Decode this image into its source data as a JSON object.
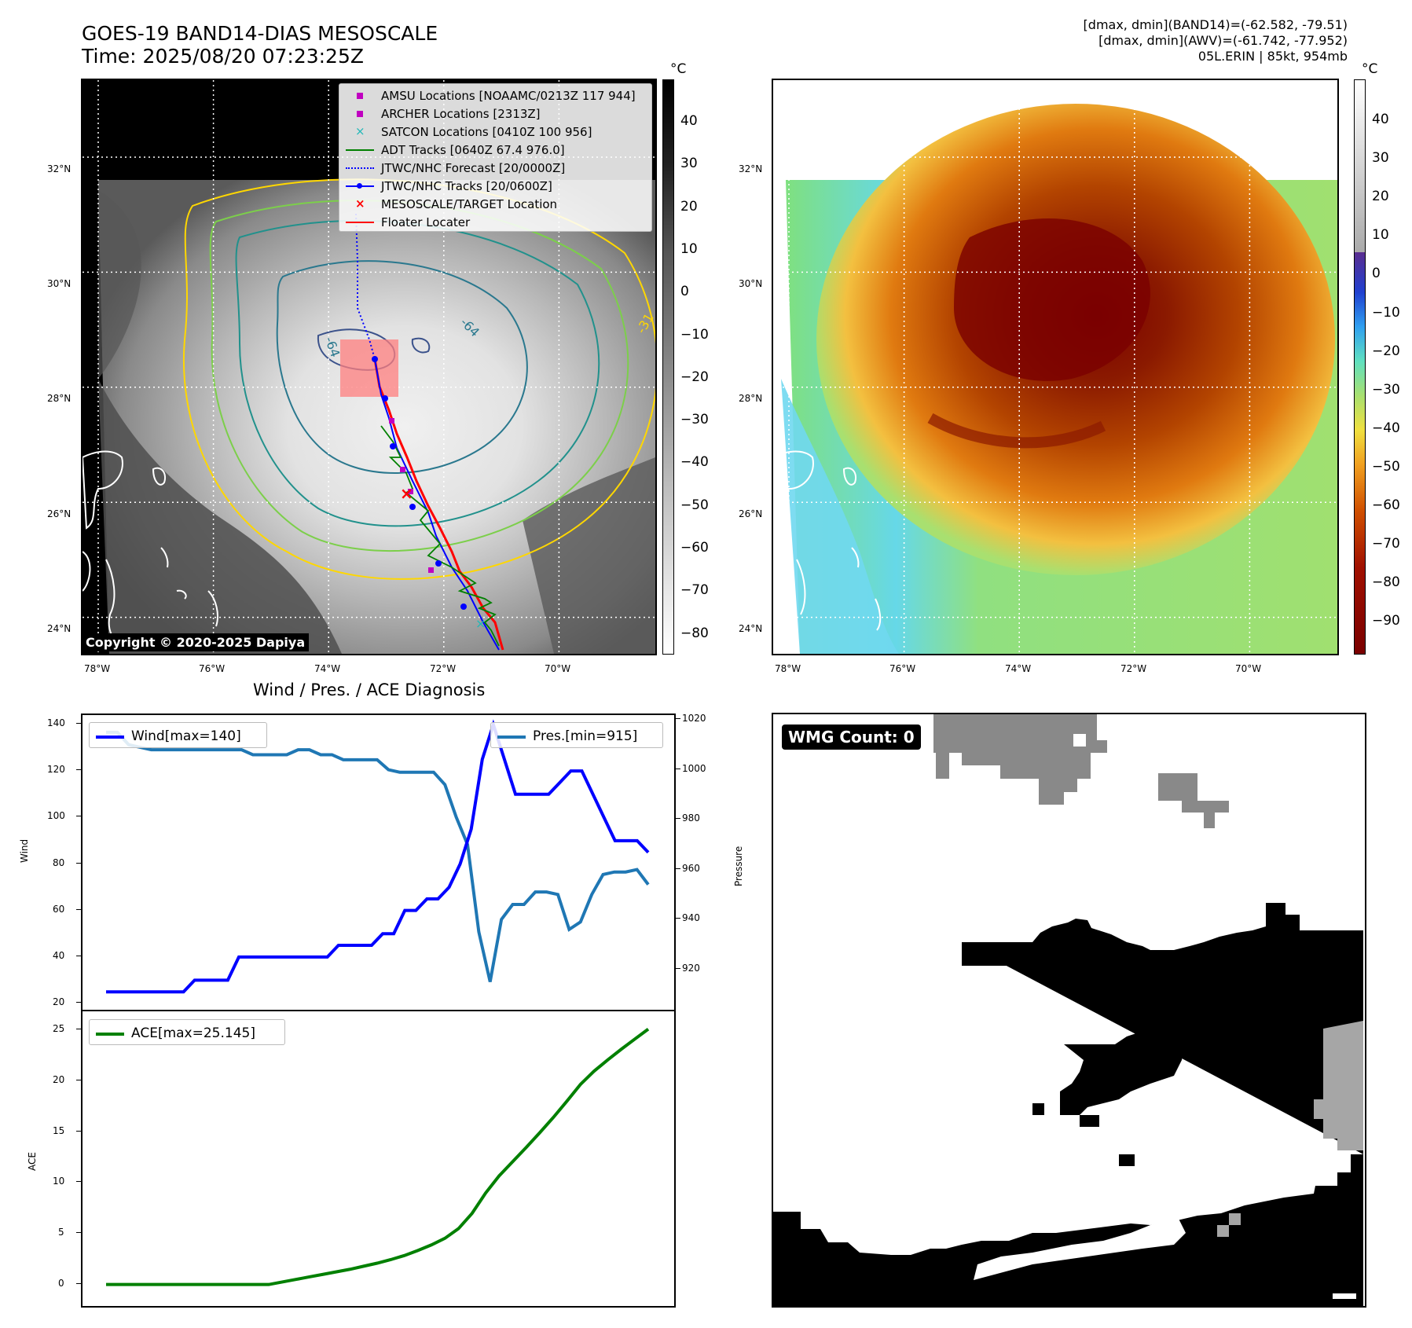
{
  "header": {
    "title_line1": "GOES-19 BAND14-DIAS MESOSCALE",
    "title_line2": "Time: 2025/08/20 07:23:25Z",
    "right_line1": "[dmax, dmin](BAND14)=(-62.582, -79.51)",
    "right_line2": "[dmax, dmin](AWV)=(-61.742, -77.952)",
    "right_line3": "05L.ERIN | 85kt, 954mb"
  },
  "map": {
    "lat_labels": [
      "32°N",
      "30°N",
      "28°N",
      "26°N",
      "24°N"
    ],
    "lon_labels": [
      "78°W",
      "76°W",
      "74°W",
      "72°W",
      "70°W"
    ],
    "lat_values": [
      32,
      30,
      28,
      26,
      24
    ],
    "lon_values": [
      -78,
      -76,
      -74,
      -72,
      -70
    ],
    "contour_labels": [
      "-64",
      "-64",
      "-31"
    ],
    "copyright": "Copyright © 2020-2025 Dapiya"
  },
  "legend": [
    {
      "label": "AMSU Locations [NOAAMC/0213Z 117 944]",
      "marker": "square",
      "color": "#c000c0"
    },
    {
      "label": "ARCHER Locations [2313Z]",
      "marker": "square",
      "color": "#c000c0"
    },
    {
      "label": "SATCON Locations [0410Z 100 956]",
      "marker": "x",
      "color": "#20b8b8"
    },
    {
      "label": "ADT Tracks [0640Z 67.4 976.0]",
      "marker": "line",
      "color": "#008000"
    },
    {
      "label": "JTWC/NHC Forecast [20/0000Z]",
      "marker": "dotted",
      "color": "#0000ff"
    },
    {
      "label": "JTWC/NHC Tracks [20/0600Z]",
      "marker": "line-dot",
      "color": "#0000ff"
    },
    {
      "label": "MESOSCALE/TARGET Location",
      "marker": "x",
      "color": "#ff0000"
    },
    {
      "label": "Floater Locater",
      "marker": "line",
      "color": "#ff0000"
    }
  ],
  "colorbar_left": {
    "unit": "°C",
    "labels": [
      "40",
      "30",
      "20",
      "10",
      "0",
      "−10",
      "−20",
      "−30",
      "−40",
      "−50",
      "−60",
      "−70",
      "−80"
    ]
  },
  "colorbar_right": {
    "unit": "°C",
    "labels": [
      "40",
      "30",
      "20",
      "10",
      "0",
      "−10",
      "−20",
      "−30",
      "−40",
      "−50",
      "−60",
      "−70",
      "−80",
      "−90"
    ]
  },
  "diagnosis": {
    "title": "Wind / Pres. / ACE Diagnosis",
    "wind_ylabel": "Wind",
    "pres_ylabel": "Pressure",
    "ace_ylabel": "ACE",
    "wind_legend": "Wind[max=140]",
    "pres_legend": "Pres.[min=915]",
    "ace_legend": "ACE[max=25.145]",
    "wind_ticks": [
      "140",
      "120",
      "100",
      "80",
      "60",
      "40",
      "20"
    ],
    "pres_ticks": [
      "1020",
      "1000",
      "980",
      "960",
      "940",
      "920"
    ],
    "ace_ticks": [
      "25",
      "20",
      "15",
      "10",
      "5",
      "0"
    ],
    "colors": {
      "wind": "#0000ff",
      "pres": "#1f77b4",
      "ace": "#008000"
    }
  },
  "wmg": {
    "label": "WMG Count: 0"
  },
  "chart_data": [
    {
      "type": "line",
      "title": "Wind / Pres. / ACE Diagnosis",
      "ylabel": "Wind",
      "ylim": [
        20,
        140
      ],
      "series": [
        {
          "name": "Wind[max=140]",
          "values": [
            25,
            25,
            25,
            25,
            25,
            25,
            25,
            25,
            30,
            30,
            30,
            30,
            40,
            40,
            40,
            40,
            40,
            40,
            40,
            40,
            40,
            45,
            45,
            45,
            45,
            50,
            50,
            60,
            60,
            65,
            65,
            70,
            80,
            95,
            125,
            140,
            125,
            110,
            110,
            110,
            110,
            115,
            120,
            120,
            110,
            100,
            90,
            90,
            90,
            85
          ]
        }
      ]
    },
    {
      "type": "line",
      "ylabel": "Pressure",
      "ylim": [
        912,
        1020
      ],
      "series": [
        {
          "name": "Pres.[min=915]",
          "values": [
            1015,
            1015,
            1010,
            1009,
            1008,
            1008,
            1008,
            1008,
            1008,
            1008,
            1008,
            1008,
            1008,
            1006,
            1006,
            1006,
            1006,
            1008,
            1008,
            1006,
            1006,
            1004,
            1004,
            1004,
            1004,
            1000,
            999,
            999,
            999,
            999,
            994,
            981,
            970,
            935,
            915,
            940,
            946,
            946,
            951,
            951,
            950,
            936,
            939,
            950,
            958,
            959,
            959,
            960,
            954
          ]
        }
      ]
    },
    {
      "type": "line",
      "ylabel": "ACE",
      "ylim": [
        -0.8,
        25.5
      ],
      "series": [
        {
          "name": "ACE[max=25.145]",
          "values": [
            0,
            0,
            0,
            0,
            0,
            0,
            0,
            0,
            0,
            0,
            0,
            0,
            0,
            0.25,
            0.5,
            0.75,
            1.0,
            1.25,
            1.5,
            1.8,
            2.1,
            2.45,
            2.85,
            3.35,
            3.9,
            4.55,
            5.5,
            7.0,
            9.0,
            10.7,
            12.1,
            13.5,
            14.95,
            16.45,
            18.05,
            19.7,
            21.0,
            22.1,
            23.15,
            24.15,
            25.145
          ]
        }
      ]
    }
  ]
}
